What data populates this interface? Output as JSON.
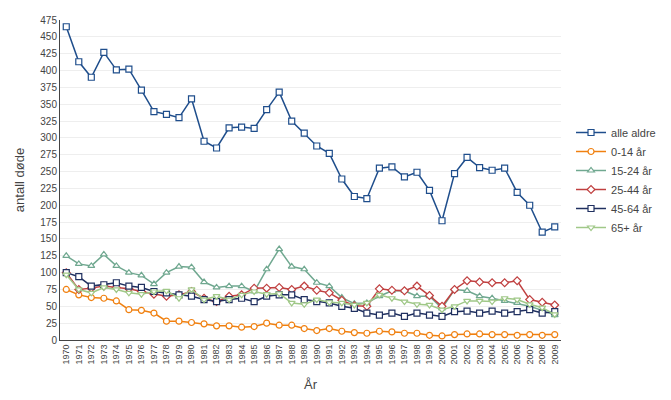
{
  "chart_data": {
    "type": "line",
    "xlabel": "År",
    "ylabel": "antall døde",
    "x": [
      1970,
      1971,
      1972,
      1973,
      1974,
      1975,
      1976,
      1977,
      1978,
      1979,
      1980,
      1981,
      1982,
      1983,
      1984,
      1985,
      1986,
      1987,
      1988,
      1989,
      1990,
      1991,
      1992,
      1993,
      1994,
      1995,
      1996,
      1997,
      1998,
      1999,
      2000,
      2001,
      2002,
      2003,
      2004,
      2005,
      2006,
      2007,
      2008,
      2009
    ],
    "series": [
      {
        "name": "alle aldre",
        "color": "#1F4E8C",
        "marker": "square",
        "values": [
          465,
          413,
          390,
          427,
          401,
          402,
          371,
          339,
          335,
          330,
          358,
          295,
          285,
          315,
          316,
          314,
          342,
          368,
          325,
          307,
          288,
          277,
          239,
          213,
          210,
          255,
          257,
          242,
          249,
          222,
          177,
          247,
          271,
          256,
          252,
          255,
          219,
          200,
          160,
          168
        ]
      },
      {
        "name": "0-14 år",
        "color": "#F08010",
        "marker": "circle",
        "values": [
          75,
          67,
          63,
          62,
          58,
          45,
          44,
          40,
          28,
          28,
          26,
          24,
          21,
          21,
          19,
          20,
          25,
          22,
          22,
          17,
          14,
          17,
          13,
          11,
          10,
          13,
          12,
          10,
          10,
          7,
          6,
          8,
          9,
          9,
          8,
          8,
          7,
          8,
          7,
          8
        ]
      },
      {
        "name": "15-24 år",
        "color": "#70A890",
        "marker": "triangle-up",
        "values": [
          125,
          113,
          110,
          127,
          110,
          100,
          96,
          83,
          100,
          109,
          108,
          86,
          78,
          80,
          80,
          72,
          105,
          135,
          109,
          105,
          85,
          80,
          63,
          54,
          55,
          65,
          73,
          73,
          65,
          65,
          47,
          75,
          73,
          65,
          62,
          58,
          55,
          50,
          44,
          37
        ]
      },
      {
        "name": "25-44 år",
        "color": "#C04040",
        "marker": "diamond",
        "values": [
          100,
          75,
          77,
          80,
          78,
          76,
          72,
          68,
          65,
          67,
          72,
          62,
          57,
          65,
          67,
          77,
          77,
          78,
          75,
          80,
          74,
          70,
          59,
          51,
          50,
          76,
          74,
          73,
          80,
          66,
          50,
          75,
          88,
          86,
          85,
          85,
          88,
          60,
          56,
          52
        ]
      },
      {
        "name": "45-64 år",
        "color": "#203060",
        "marker": "square",
        "values": [
          100,
          94,
          80,
          82,
          85,
          80,
          78,
          72,
          70,
          67,
          65,
          60,
          57,
          60,
          62,
          57,
          65,
          67,
          67,
          60,
          57,
          55,
          50,
          47,
          40,
          37,
          40,
          35,
          40,
          37,
          35,
          42,
          43,
          40,
          43,
          40,
          42,
          45,
          40,
          42
        ]
      },
      {
        "name": "65+ år",
        "color": "#A0C888",
        "marker": "triangle-down",
        "values": [
          97,
          75,
          70,
          78,
          75,
          70,
          68,
          72,
          73,
          62,
          75,
          60,
          65,
          60,
          67,
          72,
          68,
          69,
          55,
          53,
          60,
          56,
          55,
          52,
          55,
          67,
          62,
          57,
          53,
          52,
          45,
          50,
          58,
          58,
          57,
          62,
          60,
          53,
          48,
          38
        ]
      }
    ],
    "xlim": [
      1969.5,
      2009.5
    ],
    "xticks": [
      1970,
      1971,
      1972,
      1973,
      1974,
      1975,
      1976,
      1977,
      1978,
      1979,
      1980,
      1981,
      1982,
      1983,
      1984,
      1985,
      1986,
      1987,
      1988,
      1989,
      1990,
      1991,
      1992,
      1993,
      1994,
      1995,
      1996,
      1997,
      1998,
      1999,
      2000,
      2001,
      2002,
      2003,
      2004,
      2005,
      2006,
      2007,
      2008,
      2009
    ],
    "ylim": [
      0,
      475
    ],
    "yticks": [
      0,
      25,
      50,
      75,
      100,
      125,
      150,
      175,
      200,
      225,
      250,
      275,
      300,
      325,
      350,
      375,
      400,
      425,
      450,
      475
    ],
    "grid": "y",
    "legend": "right"
  }
}
